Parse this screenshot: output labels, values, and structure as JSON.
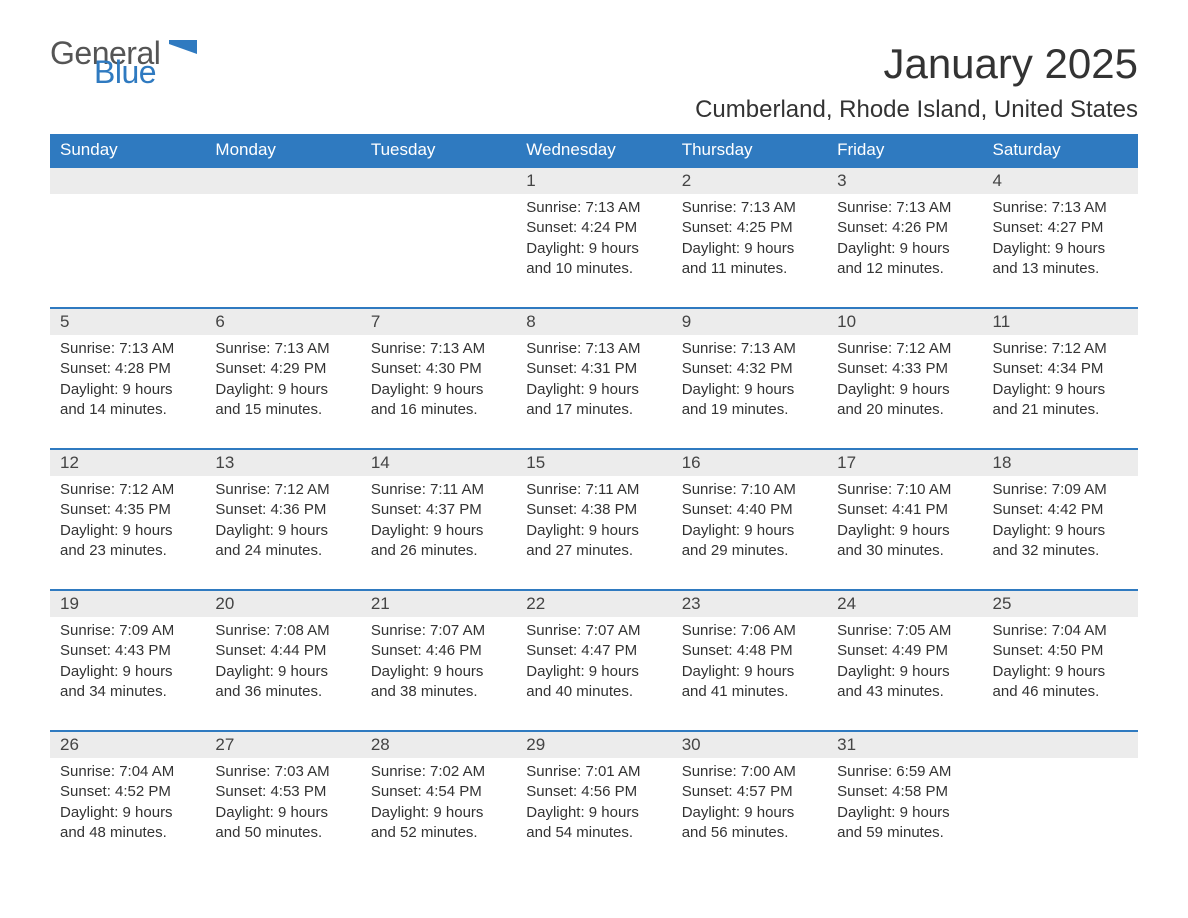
{
  "logo": {
    "word1": "General",
    "word2": "Blue",
    "accent_color": "#2f7ac0",
    "text_color": "#555555"
  },
  "title": "January 2025",
  "location": "Cumberland, Rhode Island, United States",
  "colors": {
    "header_bg": "#2f7ac0",
    "header_text": "#ffffff",
    "daynum_bg": "#ececec",
    "border_top": "#2f7ac0",
    "body_text": "#333333",
    "page_bg": "#ffffff"
  },
  "day_headers": [
    "Sunday",
    "Monday",
    "Tuesday",
    "Wednesday",
    "Thursday",
    "Friday",
    "Saturday"
  ],
  "weeks": [
    [
      null,
      null,
      null,
      {
        "n": "1",
        "sunrise": "7:13 AM",
        "sunset": "4:24 PM",
        "dl1": "9 hours",
        "dl2": "and 10 minutes."
      },
      {
        "n": "2",
        "sunrise": "7:13 AM",
        "sunset": "4:25 PM",
        "dl1": "9 hours",
        "dl2": "and 11 minutes."
      },
      {
        "n": "3",
        "sunrise": "7:13 AM",
        "sunset": "4:26 PM",
        "dl1": "9 hours",
        "dl2": "and 12 minutes."
      },
      {
        "n": "4",
        "sunrise": "7:13 AM",
        "sunset": "4:27 PM",
        "dl1": "9 hours",
        "dl2": "and 13 minutes."
      }
    ],
    [
      {
        "n": "5",
        "sunrise": "7:13 AM",
        "sunset": "4:28 PM",
        "dl1": "9 hours",
        "dl2": "and 14 minutes."
      },
      {
        "n": "6",
        "sunrise": "7:13 AM",
        "sunset": "4:29 PM",
        "dl1": "9 hours",
        "dl2": "and 15 minutes."
      },
      {
        "n": "7",
        "sunrise": "7:13 AM",
        "sunset": "4:30 PM",
        "dl1": "9 hours",
        "dl2": "and 16 minutes."
      },
      {
        "n": "8",
        "sunrise": "7:13 AM",
        "sunset": "4:31 PM",
        "dl1": "9 hours",
        "dl2": "and 17 minutes."
      },
      {
        "n": "9",
        "sunrise": "7:13 AM",
        "sunset": "4:32 PM",
        "dl1": "9 hours",
        "dl2": "and 19 minutes."
      },
      {
        "n": "10",
        "sunrise": "7:12 AM",
        "sunset": "4:33 PM",
        "dl1": "9 hours",
        "dl2": "and 20 minutes."
      },
      {
        "n": "11",
        "sunrise": "7:12 AM",
        "sunset": "4:34 PM",
        "dl1": "9 hours",
        "dl2": "and 21 minutes."
      }
    ],
    [
      {
        "n": "12",
        "sunrise": "7:12 AM",
        "sunset": "4:35 PM",
        "dl1": "9 hours",
        "dl2": "and 23 minutes."
      },
      {
        "n": "13",
        "sunrise": "7:12 AM",
        "sunset": "4:36 PM",
        "dl1": "9 hours",
        "dl2": "and 24 minutes."
      },
      {
        "n": "14",
        "sunrise": "7:11 AM",
        "sunset": "4:37 PM",
        "dl1": "9 hours",
        "dl2": "and 26 minutes."
      },
      {
        "n": "15",
        "sunrise": "7:11 AM",
        "sunset": "4:38 PM",
        "dl1": "9 hours",
        "dl2": "and 27 minutes."
      },
      {
        "n": "16",
        "sunrise": "7:10 AM",
        "sunset": "4:40 PM",
        "dl1": "9 hours",
        "dl2": "and 29 minutes."
      },
      {
        "n": "17",
        "sunrise": "7:10 AM",
        "sunset": "4:41 PM",
        "dl1": "9 hours",
        "dl2": "and 30 minutes."
      },
      {
        "n": "18",
        "sunrise": "7:09 AM",
        "sunset": "4:42 PM",
        "dl1": "9 hours",
        "dl2": "and 32 minutes."
      }
    ],
    [
      {
        "n": "19",
        "sunrise": "7:09 AM",
        "sunset": "4:43 PM",
        "dl1": "9 hours",
        "dl2": "and 34 minutes."
      },
      {
        "n": "20",
        "sunrise": "7:08 AM",
        "sunset": "4:44 PM",
        "dl1": "9 hours",
        "dl2": "and 36 minutes."
      },
      {
        "n": "21",
        "sunrise": "7:07 AM",
        "sunset": "4:46 PM",
        "dl1": "9 hours",
        "dl2": "and 38 minutes."
      },
      {
        "n": "22",
        "sunrise": "7:07 AM",
        "sunset": "4:47 PM",
        "dl1": "9 hours",
        "dl2": "and 40 minutes."
      },
      {
        "n": "23",
        "sunrise": "7:06 AM",
        "sunset": "4:48 PM",
        "dl1": "9 hours",
        "dl2": "and 41 minutes."
      },
      {
        "n": "24",
        "sunrise": "7:05 AM",
        "sunset": "4:49 PM",
        "dl1": "9 hours",
        "dl2": "and 43 minutes."
      },
      {
        "n": "25",
        "sunrise": "7:04 AM",
        "sunset": "4:50 PM",
        "dl1": "9 hours",
        "dl2": "and 46 minutes."
      }
    ],
    [
      {
        "n": "26",
        "sunrise": "7:04 AM",
        "sunset": "4:52 PM",
        "dl1": "9 hours",
        "dl2": "and 48 minutes."
      },
      {
        "n": "27",
        "sunrise": "7:03 AM",
        "sunset": "4:53 PM",
        "dl1": "9 hours",
        "dl2": "and 50 minutes."
      },
      {
        "n": "28",
        "sunrise": "7:02 AM",
        "sunset": "4:54 PM",
        "dl1": "9 hours",
        "dl2": "and 52 minutes."
      },
      {
        "n": "29",
        "sunrise": "7:01 AM",
        "sunset": "4:56 PM",
        "dl1": "9 hours",
        "dl2": "and 54 minutes."
      },
      {
        "n": "30",
        "sunrise": "7:00 AM",
        "sunset": "4:57 PM",
        "dl1": "9 hours",
        "dl2": "and 56 minutes."
      },
      {
        "n": "31",
        "sunrise": "6:59 AM",
        "sunset": "4:58 PM",
        "dl1": "9 hours",
        "dl2": "and 59 minutes."
      },
      null
    ]
  ],
  "labels": {
    "sunrise": "Sunrise: ",
    "sunset": "Sunset: ",
    "daylight": "Daylight: "
  }
}
